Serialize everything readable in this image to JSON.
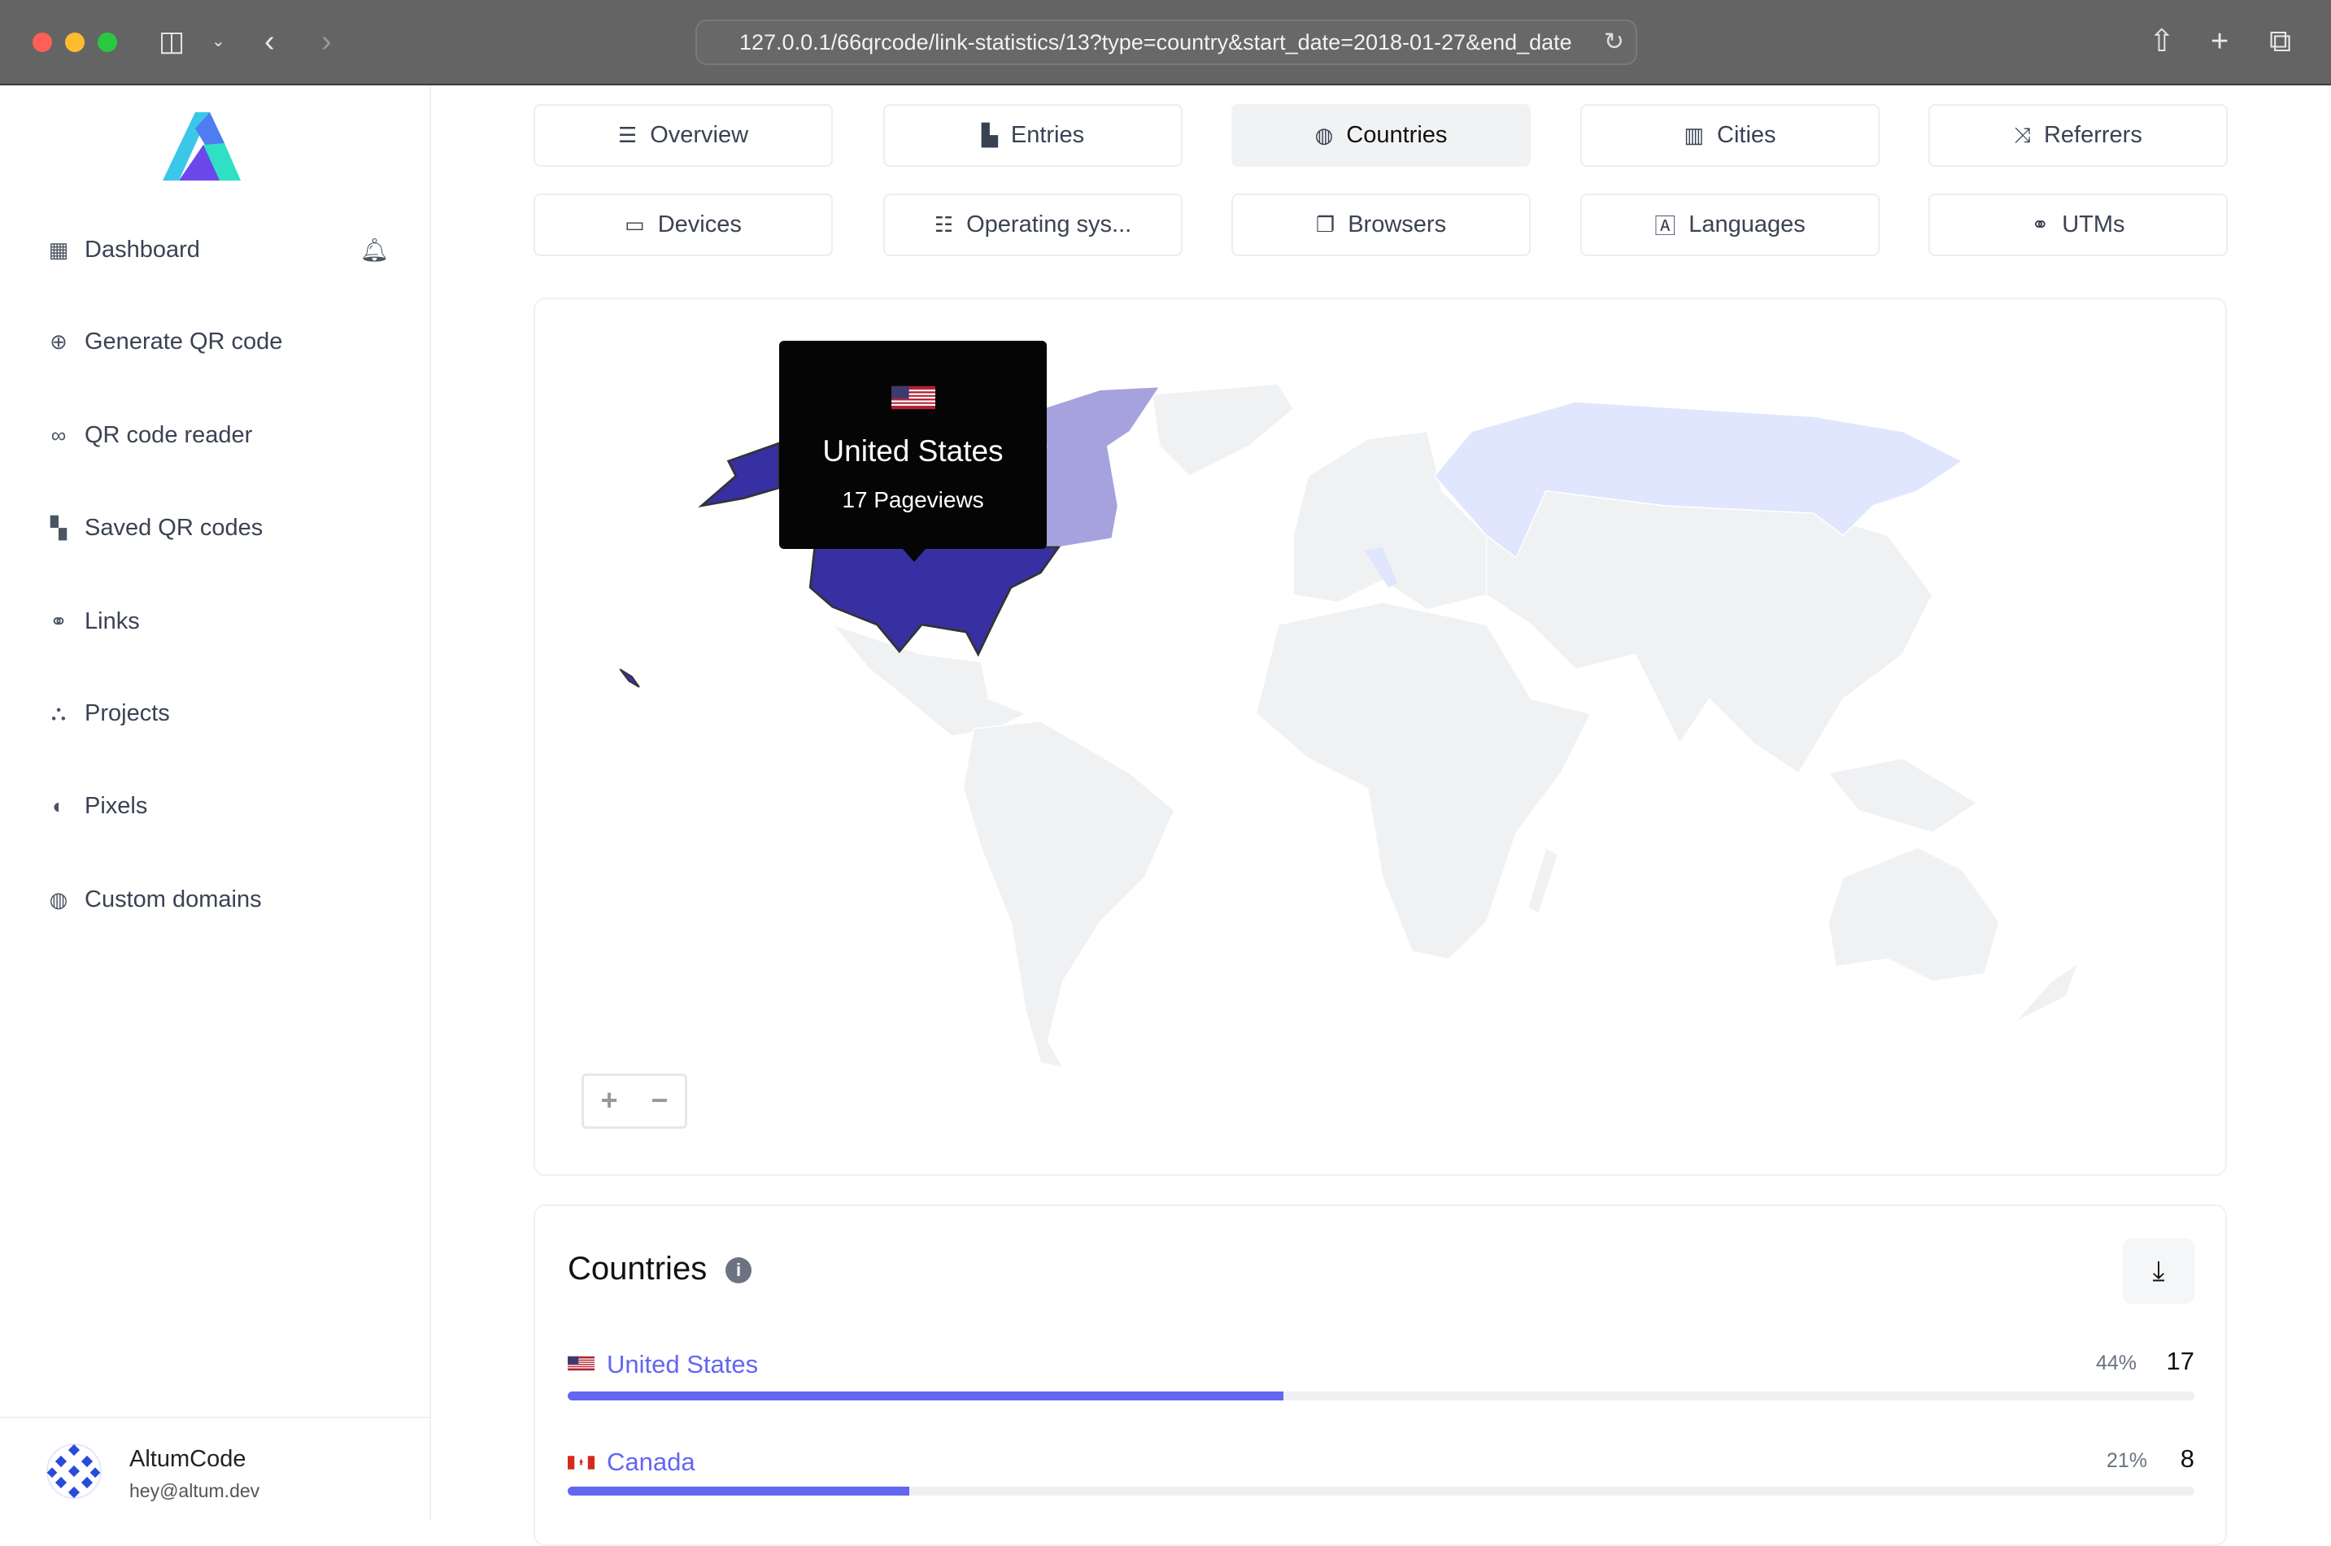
{
  "browser": {
    "url": "127.0.0.1/66qrcode/link-statistics/13?type=country&start_date=2018-01-27&end_date"
  },
  "sidebar": {
    "items": [
      {
        "label": "Dashboard",
        "icon": "table-icon"
      },
      {
        "label": "Generate QR code",
        "icon": "plus-circle-icon"
      },
      {
        "label": "QR code reader",
        "icon": "glasses-icon"
      },
      {
        "label": "Saved QR codes",
        "icon": "qrcode-icon"
      },
      {
        "label": "Links",
        "icon": "link-icon"
      },
      {
        "label": "Projects",
        "icon": "project-diagram-icon"
      },
      {
        "label": "Pixels",
        "icon": "adjust-icon"
      },
      {
        "label": "Custom domains",
        "icon": "globe-icon"
      }
    ],
    "user": {
      "name": "AltumCode",
      "email": "hey@altum.dev"
    }
  },
  "tabs": [
    {
      "label": "Overview",
      "icon": "list-icon",
      "active": false
    },
    {
      "label": "Entries",
      "icon": "chart-bar-icon",
      "active": false
    },
    {
      "label": "Countries",
      "icon": "globe-icon",
      "active": true
    },
    {
      "label": "Cities",
      "icon": "city-icon",
      "active": false
    },
    {
      "label": "Referrers",
      "icon": "random-icon",
      "active": false
    },
    {
      "label": "Devices",
      "icon": "laptop-icon",
      "active": false
    },
    {
      "label": "Operating sys...",
      "icon": "server-icon",
      "active": false
    },
    {
      "label": "Browsers",
      "icon": "window-icon",
      "active": false
    },
    {
      "label": "Languages",
      "icon": "language-icon",
      "active": false
    },
    {
      "label": "UTMs",
      "icon": "link-icon",
      "active": false
    }
  ],
  "map": {
    "tooltip": {
      "country": "United States",
      "value": "17 Pageviews"
    },
    "colors": {
      "high": "#3730a3",
      "mid": "#a5a2dd",
      "low": "#dfe6fd",
      "none": "#f0f1f3"
    },
    "zoom_in": "+",
    "zoom_out": "−"
  },
  "countries": {
    "title": "Countries",
    "rows": [
      {
        "name": "United States",
        "percent": "44%",
        "percent_value": 44,
        "count": "17"
      },
      {
        "name": "Canada",
        "percent": "21%",
        "percent_value": 21,
        "count": "8"
      }
    ]
  }
}
